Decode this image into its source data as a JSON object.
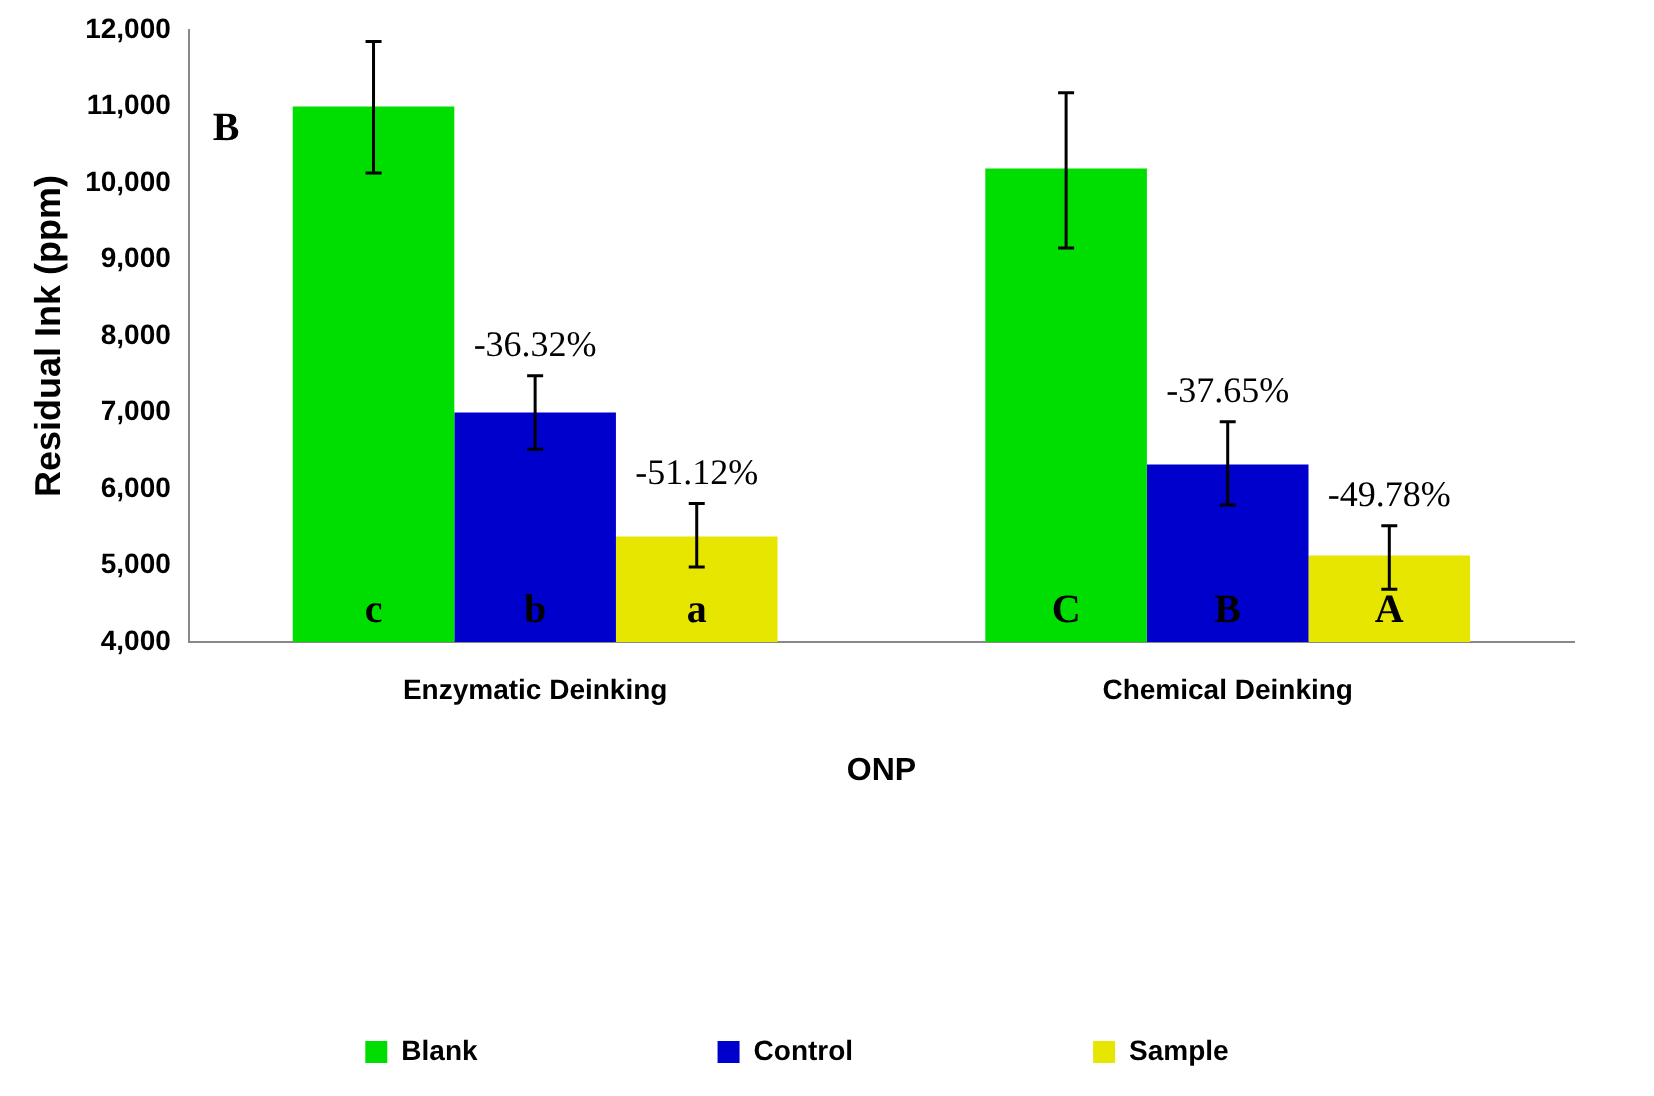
{
  "chart_data": {
    "type": "bar",
    "ylabel": "Residual Ink (ppm)",
    "xlabel": "ONP",
    "categories": [
      "Enzymatic Deinking",
      "Chemical Deinking"
    ],
    "series": [
      {
        "name": "Blank",
        "color": "#00dd00",
        "values": [
          11000,
          10190
        ],
        "errors": [
          [
            10130,
            11850
          ],
          [
            9150,
            11180
          ]
        ]
      },
      {
        "name": "Control",
        "color": "#0000cc",
        "values": [
          7000,
          6320
        ],
        "errors": [
          [
            6520,
            7480
          ],
          [
            5790,
            6880
          ]
        ]
      },
      {
        "name": "Sample",
        "color": "#e6e600",
        "values": [
          5380,
          5130
        ],
        "errors": [
          [
            4980,
            5810
          ],
          [
            4690,
            5520
          ]
        ]
      }
    ],
    "ylim": [
      4000,
      12000
    ],
    "yticks": [
      {
        "value": 4000,
        "label": "4,000"
      },
      {
        "value": 5000,
        "label": "5,000"
      },
      {
        "value": 6000,
        "label": "6,000"
      },
      {
        "value": 7000,
        "label": "7,000"
      },
      {
        "value": 8000,
        "label": "8,000"
      },
      {
        "value": 9000,
        "label": "9,000"
      },
      {
        "value": 10000,
        "label": "10,000"
      },
      {
        "value": 11000,
        "label": "11,000"
      },
      {
        "value": 12000,
        "label": "12,000"
      }
    ],
    "grid": false,
    "legend": "bottom",
    "annotations": [
      "B",
      {
        "text": "-36.32%",
        "x": "Enzymatic Deinking",
        "y": 7480
      },
      {
        "text": "-37.65%",
        "x": "Chemical Deinking",
        "y": 6880
      },
      "-51.12%",
      "c",
      "b",
      "a",
      "-49.78%",
      "C",
      "B",
      "A"
    ]
  }
}
